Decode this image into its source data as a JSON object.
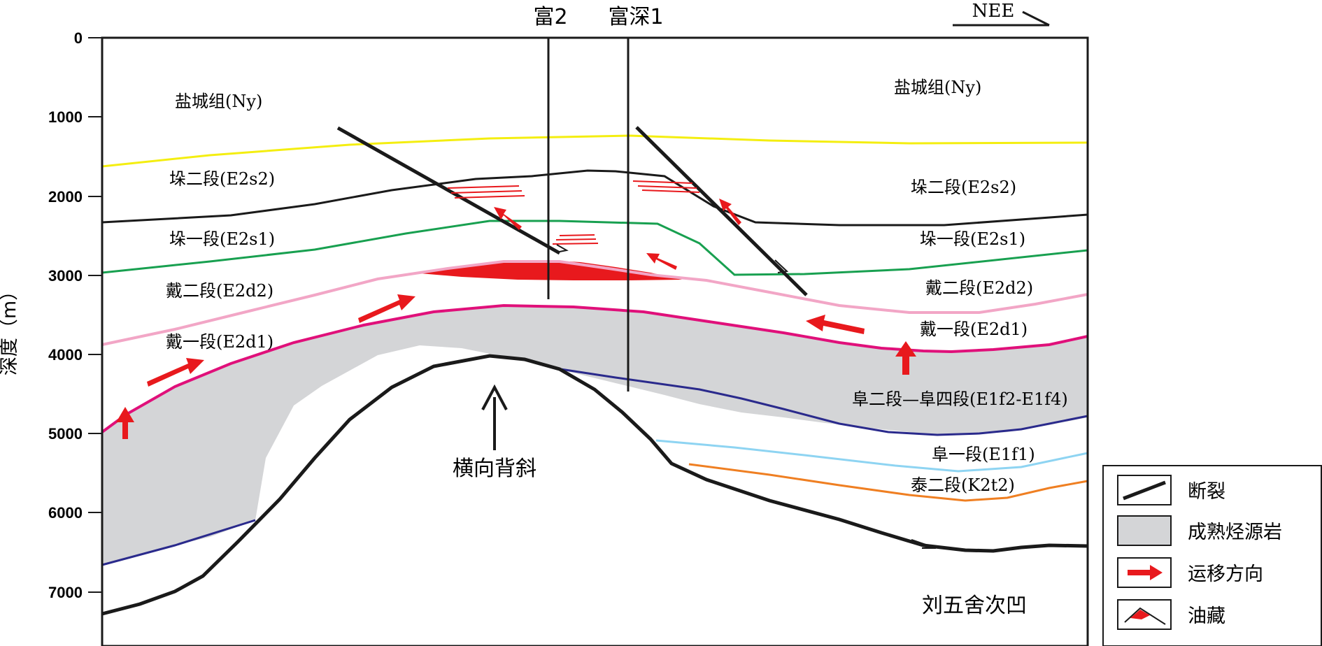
{
  "axis": {
    "title": "深度（m）",
    "ticks": [
      "0",
      "1000",
      "2000",
      "3000",
      "4000",
      "5000",
      "6000",
      "7000"
    ]
  },
  "direction": {
    "label": "NEE"
  },
  "wells": [
    {
      "name": "富2"
    },
    {
      "name": "富深1"
    }
  ],
  "formations_left": [
    {
      "name": "盐城组",
      "code": "Ny"
    },
    {
      "name": "垛二段",
      "code": "E2s2"
    },
    {
      "name": "垛一段",
      "code": "E2s1"
    },
    {
      "name": "戴二段",
      "code": "E2d2"
    },
    {
      "name": "戴一段",
      "code": "E2d1"
    }
  ],
  "formations_right": [
    {
      "name": "盐城组",
      "code": "Ny"
    },
    {
      "name": "垛二段",
      "code": "E2s2"
    },
    {
      "name": "垛一段",
      "code": "E2s1"
    },
    {
      "name": "戴二段",
      "code": "E2d2"
    },
    {
      "name": "戴一段",
      "code": "E2d1"
    },
    {
      "name": "阜二段—阜四段",
      "code": "E1f2-E1f4"
    },
    {
      "name": "阜一段",
      "code": "E1f1"
    },
    {
      "name": "泰二段",
      "code": "K2t2"
    }
  ],
  "structures": {
    "anticline_label": "横向背斜",
    "sag_label": "刘五舍次凹"
  },
  "legend": [
    {
      "key": "fault",
      "label": "断裂"
    },
    {
      "key": "source",
      "label": "成熟烃源岩"
    },
    {
      "key": "migration",
      "label": "运移方向"
    },
    {
      "key": "reservoir",
      "label": "油藏"
    }
  ],
  "colors": {
    "yellow_horizon": "#f4ee10",
    "black_horizon": "#1a1a1a",
    "green_horizon": "#18a050",
    "pink_horizon": "#f2a6c6",
    "magenta_horizon": "#e0107a",
    "navy_horizon": "#2a2a8c",
    "lightblue_horizon": "#8ed4f2",
    "orange_horizon": "#ef7f22",
    "source_rock": "#d4d5d7",
    "migration_arrow": "#e8191d",
    "reservoir": "#e8191d"
  }
}
